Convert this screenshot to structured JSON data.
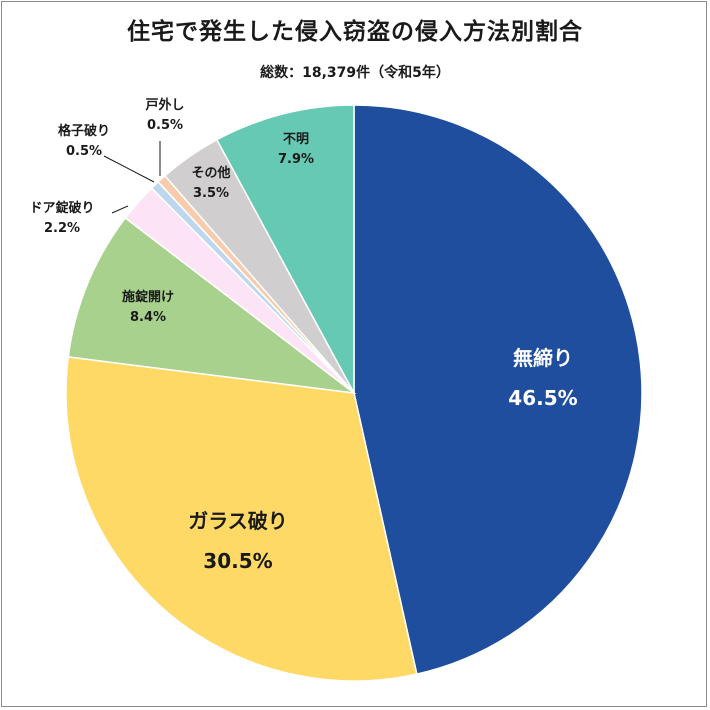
{
  "chart_data": {
    "type": "pie",
    "title": "住宅で発生した侵入窃盗の侵入方法別割合",
    "subtitle": "総数：18,379件（令和5年）",
    "slices": [
      {
        "label": "無締り",
        "value": 46.5,
        "value_label": "46.5%",
        "color": "#1f4e9e"
      },
      {
        "label": "ガラス破り",
        "value": 30.5,
        "value_label": "30.5%",
        "color": "#ffd966"
      },
      {
        "label": "施錠開け",
        "value": 8.4,
        "value_label": "8.4%",
        "color": "#a9d18e"
      },
      {
        "label": "ドア錠破り",
        "value": 2.2,
        "value_label": "2.2%",
        "color": "#fce4f6"
      },
      {
        "label": "格子破り",
        "value": 0.5,
        "value_label": "0.5%",
        "color": "#bdd7ee"
      },
      {
        "label": "戸外し",
        "value": 0.5,
        "value_label": "0.5%",
        "color": "#f8cbad"
      },
      {
        "label": "その他",
        "value": 3.5,
        "value_label": "3.5%",
        "color": "#d0cece"
      },
      {
        "label": "不明",
        "value": 7.9,
        "value_label": "7.9%",
        "color": "#66c9b4"
      }
    ],
    "start": "top",
    "direction": "clockwise",
    "legend": "none",
    "labels": "on-slice-and-leader-lines"
  }
}
